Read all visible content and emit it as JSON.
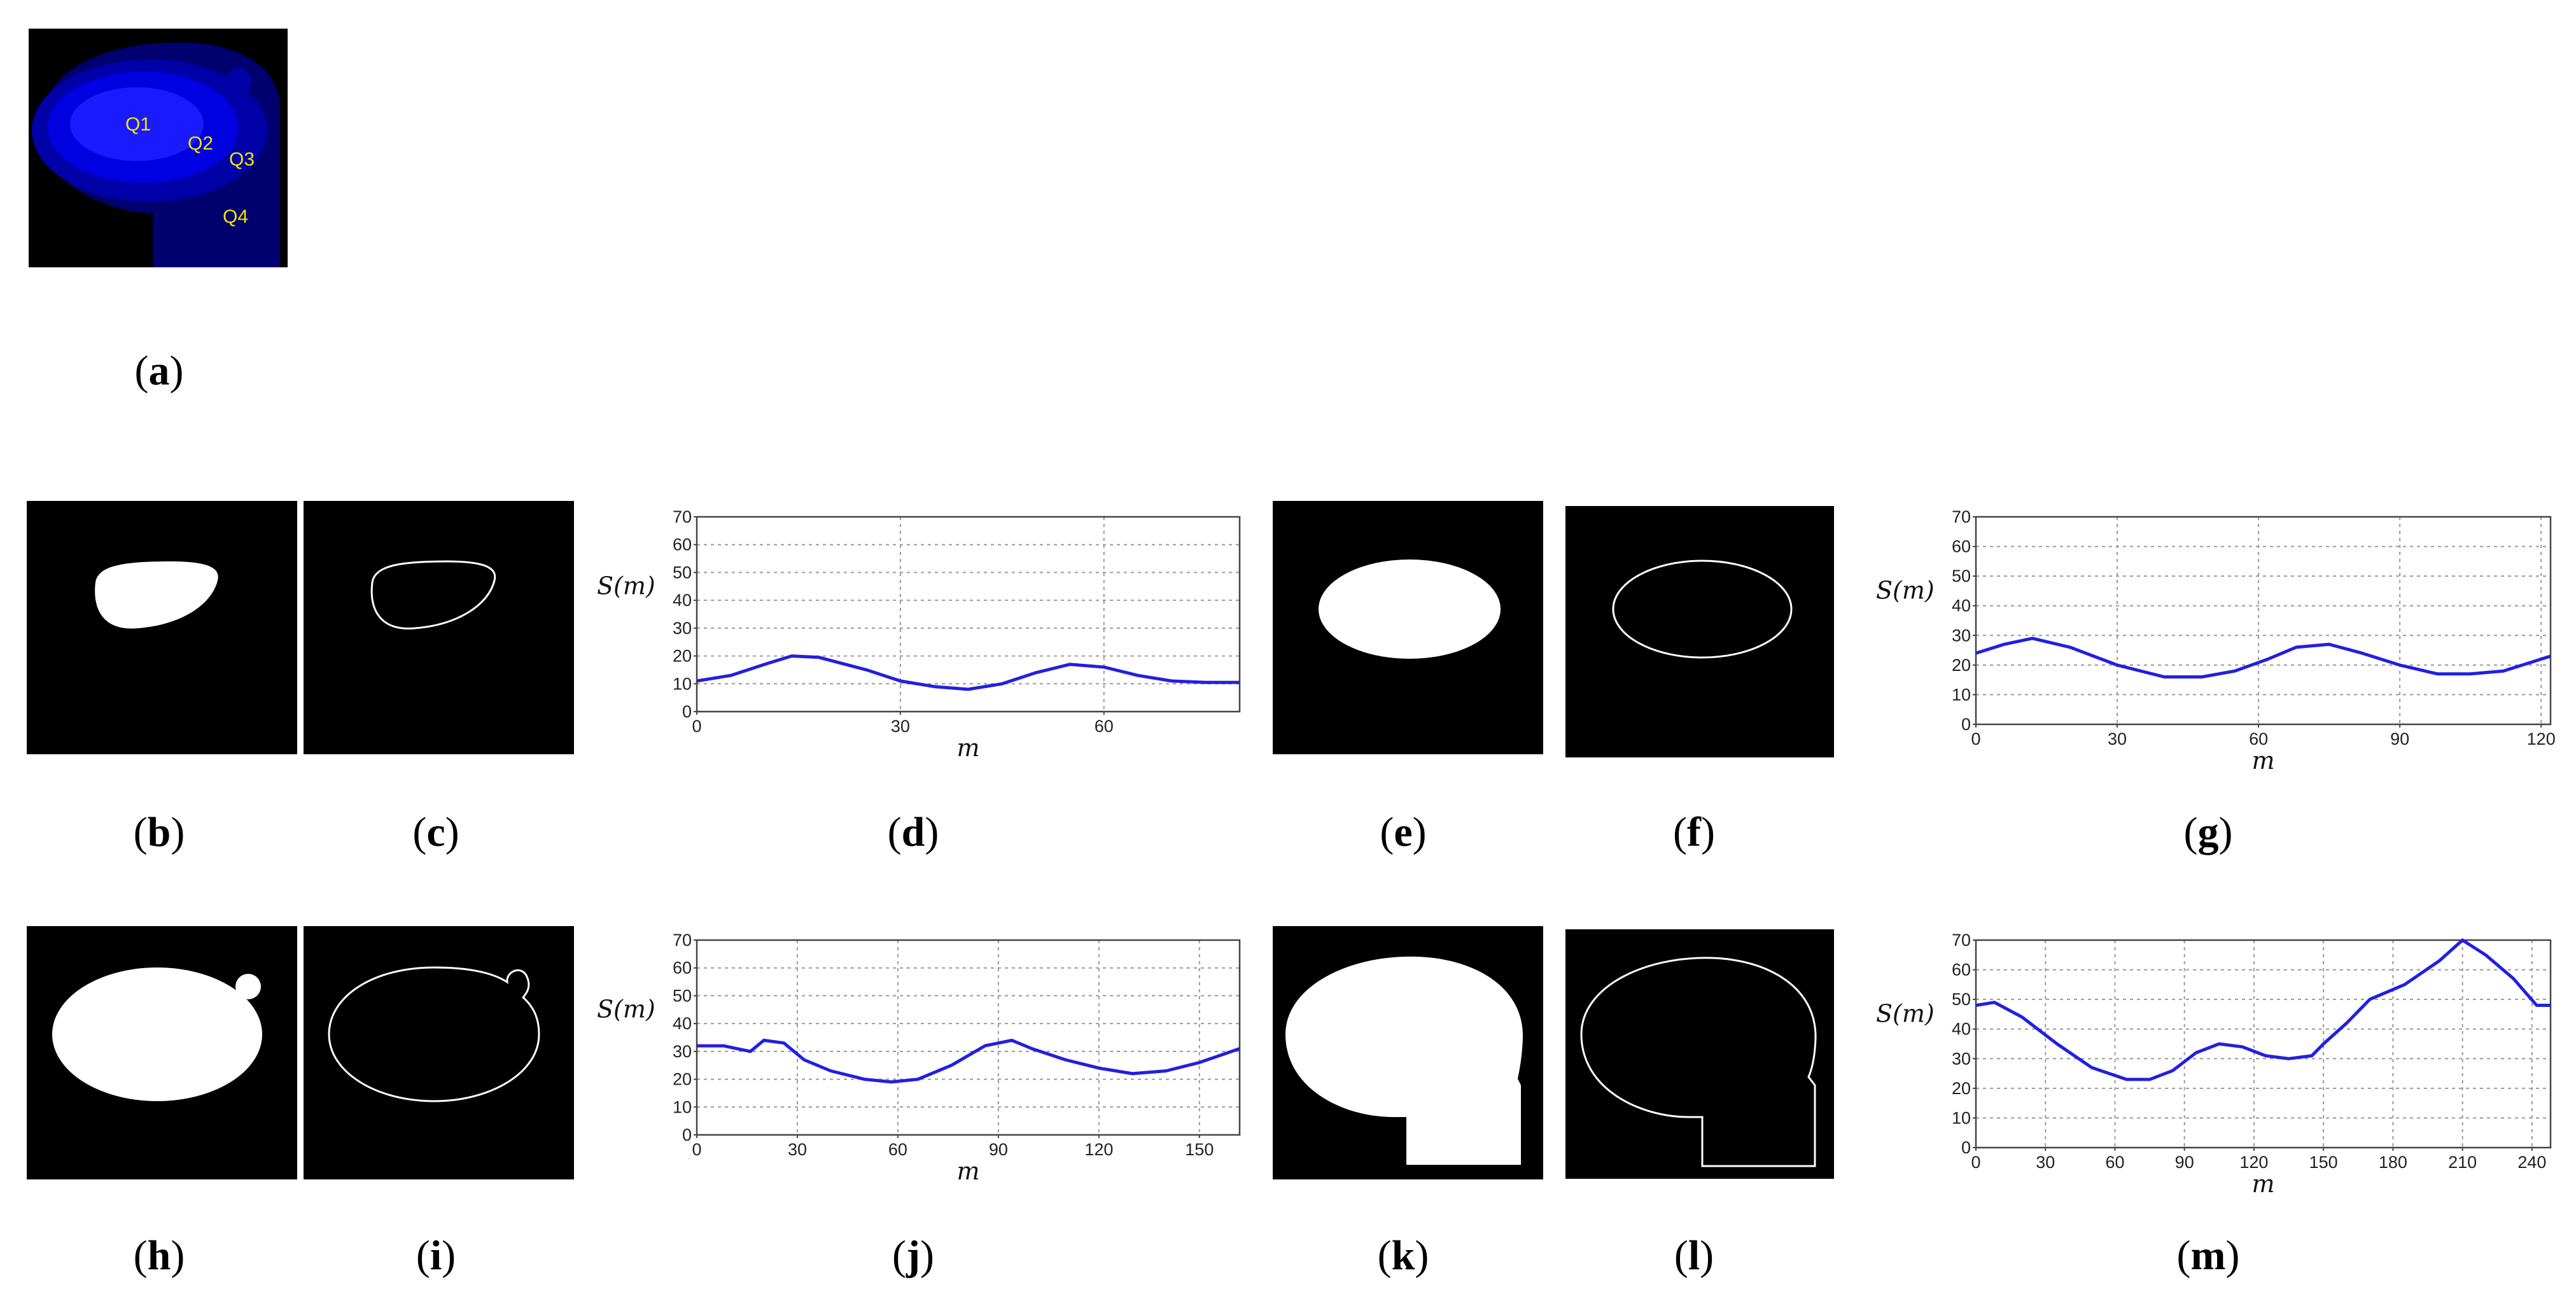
{
  "panel_a": {
    "labels": [
      "Q1",
      "Q2",
      "Q3",
      "Q4"
    ],
    "colors": {
      "background": "#000000",
      "q4": "#00006e",
      "q3": "#0000a8",
      "q2": "#0000e0",
      "q1": "#1a1aff",
      "label": "#f2e600"
    }
  },
  "captions": {
    "a": "a",
    "b": "b",
    "c": "c",
    "d": "d",
    "e": "e",
    "f": "f",
    "g": "g",
    "h": "h",
    "i": "i",
    "j": "j",
    "k": "k",
    "l": "l",
    "m": "m"
  },
  "axis_labels": {
    "y": "S(m)",
    "x": "m"
  },
  "chart_data": [
    {
      "panel": "d",
      "type": "line",
      "xlabel": "m",
      "ylabel": "S(m)",
      "xlim": [
        0,
        80
      ],
      "ylim": [
        0,
        70
      ],
      "xticks": [
        0,
        30,
        60
      ],
      "yticks": [
        0,
        10,
        20,
        30,
        40,
        50,
        60,
        70
      ],
      "grid": true,
      "color": "#2020e0",
      "series": [
        {
          "x": [
            0,
            5,
            10,
            14,
            18,
            25,
            30,
            35,
            40,
            45,
            50,
            55,
            60,
            65,
            70,
            75,
            80
          ],
          "y": [
            11,
            13,
            17,
            20,
            19.5,
            15,
            11,
            9,
            8,
            10,
            14,
            17,
            16,
            13,
            11,
            10.5,
            10.5
          ]
        }
      ]
    },
    {
      "panel": "g",
      "type": "line",
      "xlabel": "m",
      "ylabel": "S(m)",
      "xlim": [
        0,
        122
      ],
      "ylim": [
        0,
        70
      ],
      "xticks": [
        0,
        30,
        60,
        90,
        120
      ],
      "yticks": [
        0,
        10,
        20,
        30,
        40,
        50,
        60,
        70
      ],
      "grid": true,
      "color": "#2020e0",
      "series": [
        {
          "x": [
            0,
            6,
            12,
            20,
            30,
            40,
            48,
            55,
            62,
            68,
            75,
            82,
            90,
            98,
            105,
            112,
            118,
            122
          ],
          "y": [
            24,
            27,
            29,
            26,
            20,
            16,
            16,
            18,
            22,
            26,
            27,
            24,
            20,
            17,
            17,
            18,
            21,
            23
          ]
        }
      ]
    },
    {
      "panel": "j",
      "type": "line",
      "xlabel": "m",
      "ylabel": "S(m)",
      "xlim": [
        0,
        162
      ],
      "ylim": [
        0,
        70
      ],
      "xticks": [
        0,
        30,
        60,
        90,
        120,
        150
      ],
      "yticks": [
        0,
        10,
        20,
        30,
        40,
        50,
        60,
        70
      ],
      "grid": true,
      "color": "#2020e0",
      "series": [
        {
          "x": [
            0,
            8,
            16,
            20,
            26,
            32,
            40,
            50,
            58,
            66,
            76,
            86,
            94,
            100,
            110,
            120,
            130,
            140,
            150,
            162
          ],
          "y": [
            32,
            32,
            30,
            34,
            33,
            27,
            23,
            20,
            19,
            20,
            25,
            32,
            34,
            31,
            27,
            24,
            22,
            23,
            26,
            31
          ]
        }
      ]
    },
    {
      "panel": "m",
      "type": "line",
      "xlabel": "m",
      "ylabel": "S(m)",
      "xlim": [
        0,
        248
      ],
      "ylim": [
        0,
        70
      ],
      "xticks": [
        0,
        30,
        60,
        90,
        120,
        150,
        180,
        210,
        240
      ],
      "yticks": [
        0,
        10,
        20,
        30,
        40,
        50,
        60,
        70
      ],
      "grid": true,
      "color": "#2020e0",
      "series": [
        {
          "x": [
            0,
            8,
            20,
            35,
            50,
            65,
            75,
            85,
            95,
            105,
            115,
            125,
            135,
            145,
            150,
            160,
            170,
            185,
            200,
            210,
            220,
            232,
            242,
            248
          ],
          "y": [
            48,
            49,
            44,
            35,
            27,
            23,
            23,
            26,
            32,
            35,
            34,
            31,
            30,
            31,
            35,
            42,
            50,
            55,
            63,
            70,
            65,
            57,
            48,
            48
          ]
        }
      ]
    }
  ]
}
